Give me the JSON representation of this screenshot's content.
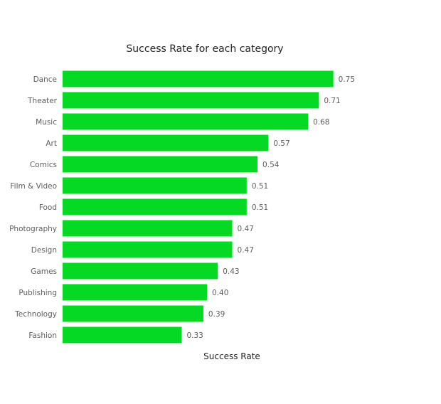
{
  "chart_data": {
    "type": "bar",
    "orientation": "horizontal",
    "title": "Success Rate for each category",
    "xlabel": "Success Rate",
    "ylabel": "",
    "xlim": [
      0,
      0.8
    ],
    "grid": false,
    "legend": "none",
    "bar_color": "#05d923",
    "categories": [
      "Dance",
      "Theater",
      "Music",
      "Art",
      "Comics",
      "Film & Video",
      "Food",
      "Photography",
      "Design",
      "Games",
      "Publishing",
      "Technology",
      "Fashion"
    ],
    "values": [
      0.75,
      0.71,
      0.68,
      0.57,
      0.54,
      0.51,
      0.51,
      0.47,
      0.47,
      0.43,
      0.4,
      0.39,
      0.33
    ],
    "value_labels": [
      "0.75",
      "0.71",
      "0.68",
      "0.57",
      "0.54",
      "0.51",
      "0.51",
      "0.47",
      "0.47",
      "0.43",
      "0.40",
      "0.39",
      "0.33"
    ]
  }
}
